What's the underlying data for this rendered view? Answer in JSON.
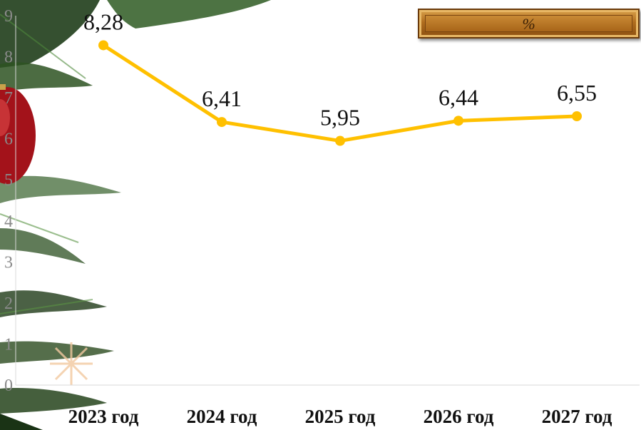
{
  "unit_badge": {
    "label": "%"
  },
  "chart_data": {
    "type": "line",
    "title": "",
    "xlabel": "",
    "ylabel": "",
    "categories": [
      "2023 год",
      "2024 год",
      "2025 год",
      "2026 год",
      "2027 год"
    ],
    "series": [
      {
        "values": [
          8.28,
          6.41,
          5.95,
          6.44,
          6.55
        ],
        "color": "#ffc000"
      }
    ],
    "data_labels": [
      "8,28",
      "6,41",
      "5,95",
      "6,44",
      "6,55"
    ],
    "y_ticks": [
      "0",
      "1",
      "2",
      "3",
      "4",
      "5",
      "6",
      "7",
      "8",
      "9"
    ],
    "ylim": [
      0,
      9
    ],
    "grid": false,
    "legend": "none"
  }
}
